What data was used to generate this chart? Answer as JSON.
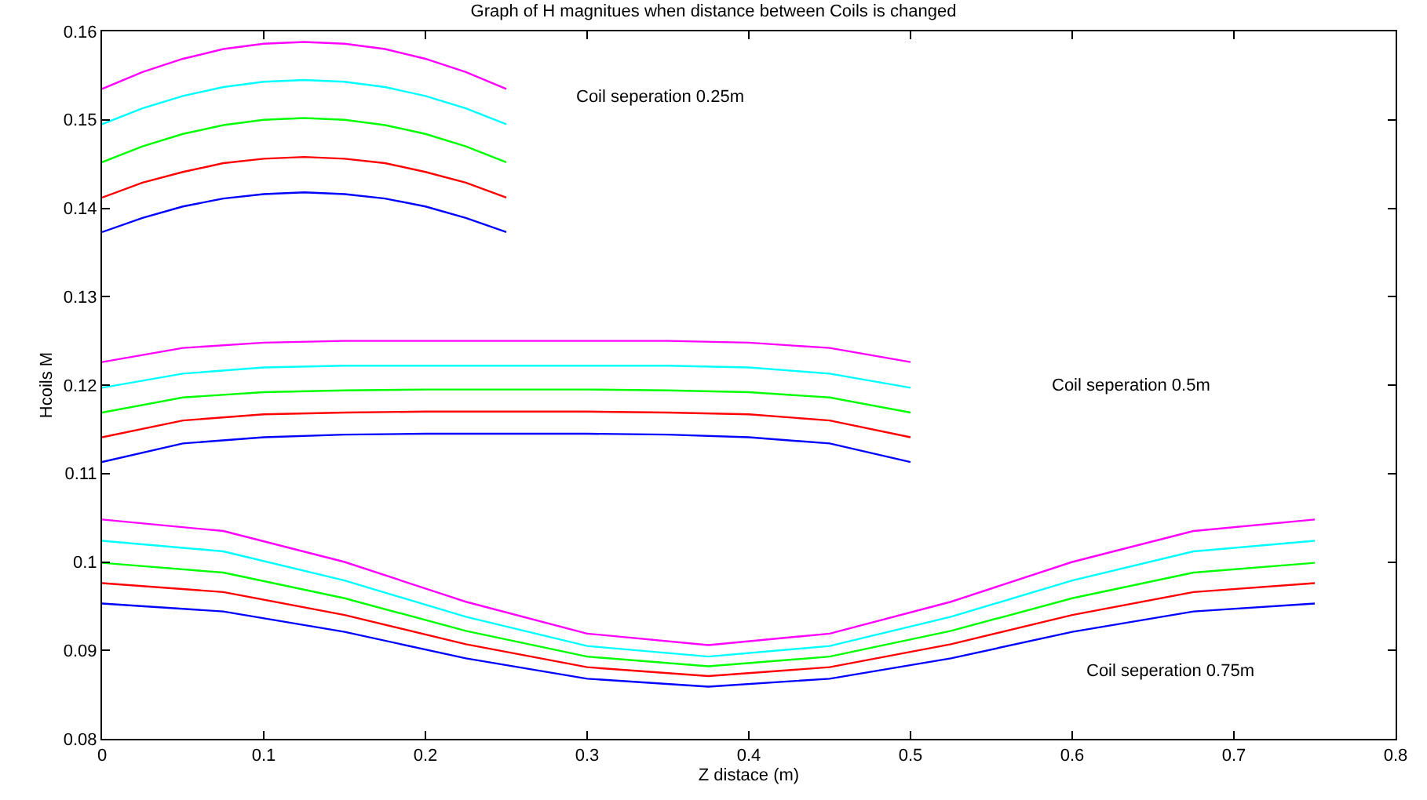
{
  "chart_data": {
    "type": "line",
    "title": "Graph of H magnitues when distance between Coils is changed",
    "xlabel": "Z distace (m)",
    "ylabel": "Hcoils M",
    "xlim": [
      0,
      0.8
    ],
    "xticks": [
      0,
      0.1,
      0.2,
      0.3,
      0.4,
      0.5,
      0.6,
      0.7,
      0.8
    ],
    "ylim": [
      0.08,
      0.16
    ],
    "yticks": [
      0.08,
      0.09,
      0.1,
      0.11,
      0.12,
      0.13,
      0.14,
      0.15,
      0.16
    ],
    "series": [
      {
        "color": "#ff00ff",
        "x": [
          0,
          0.025,
          0.05,
          0.075,
          0.1,
          0.125,
          0.15,
          0.175,
          0.2,
          0.225,
          0.25
        ],
        "values": [
          0.1535,
          0.1554,
          0.1569,
          0.158,
          0.1586,
          0.1588,
          0.1586,
          0.158,
          0.1569,
          0.1554,
          0.1535
        ]
      },
      {
        "color": "#00ffff",
        "x": [
          0,
          0.025,
          0.05,
          0.075,
          0.1,
          0.125,
          0.15,
          0.175,
          0.2,
          0.225,
          0.25
        ],
        "values": [
          0.1495,
          0.1513,
          0.1527,
          0.1537,
          0.1543,
          0.1545,
          0.1543,
          0.1537,
          0.1527,
          0.1513,
          0.1495
        ]
      },
      {
        "color": "#00ff00",
        "x": [
          0,
          0.025,
          0.05,
          0.075,
          0.1,
          0.125,
          0.15,
          0.175,
          0.2,
          0.225,
          0.25
        ],
        "values": [
          0.1452,
          0.147,
          0.1484,
          0.1494,
          0.15,
          0.1502,
          0.15,
          0.1494,
          0.1484,
          0.147,
          0.1452
        ]
      },
      {
        "color": "#ff0000",
        "x": [
          0,
          0.025,
          0.05,
          0.075,
          0.1,
          0.125,
          0.15,
          0.175,
          0.2,
          0.225,
          0.25
        ],
        "values": [
          0.1412,
          0.1429,
          0.1441,
          0.1451,
          0.1456,
          0.1458,
          0.1456,
          0.1451,
          0.1441,
          0.1429,
          0.1412
        ]
      },
      {
        "color": "#0000ff",
        "x": [
          0,
          0.025,
          0.05,
          0.075,
          0.1,
          0.125,
          0.15,
          0.175,
          0.2,
          0.225,
          0.25
        ],
        "values": [
          0.1373,
          0.1389,
          0.1402,
          0.1411,
          0.1416,
          0.1418,
          0.1416,
          0.1411,
          0.1402,
          0.1389,
          0.1373
        ]
      },
      {
        "color": "#ff00ff",
        "x": [
          0,
          0.05,
          0.1,
          0.15,
          0.2,
          0.25,
          0.3,
          0.35,
          0.4,
          0.45,
          0.5
        ],
        "values": [
          0.1226,
          0.1242,
          0.1248,
          0.125,
          0.125,
          0.125,
          0.125,
          0.125,
          0.1248,
          0.1242,
          0.1226
        ]
      },
      {
        "color": "#00ffff",
        "x": [
          0,
          0.05,
          0.1,
          0.15,
          0.2,
          0.25,
          0.3,
          0.35,
          0.4,
          0.45,
          0.5
        ],
        "values": [
          0.1197,
          0.1213,
          0.122,
          0.1222,
          0.1222,
          0.1222,
          0.1222,
          0.1222,
          0.122,
          0.1213,
          0.1197
        ]
      },
      {
        "color": "#00ff00",
        "x": [
          0,
          0.05,
          0.1,
          0.15,
          0.2,
          0.25,
          0.3,
          0.35,
          0.4,
          0.45,
          0.5
        ],
        "values": [
          0.1169,
          0.1186,
          0.1192,
          0.1194,
          0.1195,
          0.1195,
          0.1195,
          0.1194,
          0.1192,
          0.1186,
          0.1169
        ]
      },
      {
        "color": "#ff0000",
        "x": [
          0,
          0.05,
          0.1,
          0.15,
          0.2,
          0.25,
          0.3,
          0.35,
          0.4,
          0.45,
          0.5
        ],
        "values": [
          0.1141,
          0.116,
          0.1167,
          0.1169,
          0.117,
          0.117,
          0.117,
          0.1169,
          0.1167,
          0.116,
          0.1141
        ]
      },
      {
        "color": "#0000ff",
        "x": [
          0,
          0.05,
          0.1,
          0.15,
          0.2,
          0.25,
          0.3,
          0.35,
          0.4,
          0.45,
          0.5
        ],
        "values": [
          0.1113,
          0.1134,
          0.1141,
          0.1144,
          0.1145,
          0.1145,
          0.1145,
          0.1144,
          0.1141,
          0.1134,
          0.1113
        ]
      },
      {
        "color": "#ff00ff",
        "x": [
          0,
          0.075,
          0.15,
          0.225,
          0.3,
          0.375,
          0.45,
          0.525,
          0.6,
          0.675,
          0.75
        ],
        "values": [
          0.1048,
          0.1035,
          0.1,
          0.0955,
          0.0919,
          0.0906,
          0.0919,
          0.0955,
          0.1,
          0.1035,
          0.1048
        ]
      },
      {
        "color": "#00ffff",
        "x": [
          0,
          0.075,
          0.15,
          0.225,
          0.3,
          0.375,
          0.45,
          0.525,
          0.6,
          0.675,
          0.75
        ],
        "values": [
          0.1024,
          0.1012,
          0.0979,
          0.0938,
          0.0905,
          0.0893,
          0.0905,
          0.0938,
          0.0979,
          0.1012,
          0.1024
        ]
      },
      {
        "color": "#00ff00",
        "x": [
          0,
          0.075,
          0.15,
          0.225,
          0.3,
          0.375,
          0.45,
          0.525,
          0.6,
          0.675,
          0.75
        ],
        "values": [
          0.0999,
          0.0988,
          0.0959,
          0.0922,
          0.0893,
          0.0882,
          0.0893,
          0.0922,
          0.0959,
          0.0988,
          0.0999
        ]
      },
      {
        "color": "#ff0000",
        "x": [
          0,
          0.075,
          0.15,
          0.225,
          0.3,
          0.375,
          0.45,
          0.525,
          0.6,
          0.675,
          0.75
        ],
        "values": [
          0.0976,
          0.0966,
          0.094,
          0.0907,
          0.0881,
          0.0871,
          0.0881,
          0.0907,
          0.094,
          0.0966,
          0.0976
        ]
      },
      {
        "color": "#0000ff",
        "x": [
          0,
          0.075,
          0.15,
          0.225,
          0.3,
          0.375,
          0.45,
          0.525,
          0.6,
          0.675,
          0.75
        ],
        "values": [
          0.0953,
          0.0944,
          0.0921,
          0.0891,
          0.0868,
          0.0859,
          0.0868,
          0.0891,
          0.0921,
          0.0944,
          0.0953
        ]
      }
    ],
    "annotations": [
      "Coil seperation 0.25m",
      "Coil seperation 0.5m",
      "Coil seperation 0.75m"
    ]
  }
}
